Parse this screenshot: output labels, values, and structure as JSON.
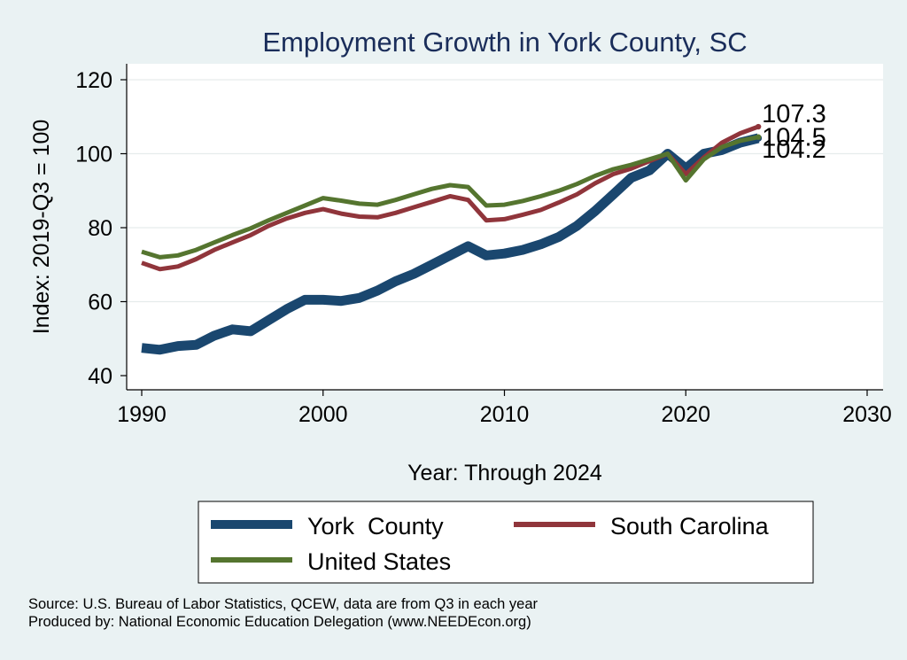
{
  "chart_data": {
    "type": "line",
    "title": "Employment Growth in York County, SC",
    "xlabel": "Year: Through 2024",
    "ylabel": "Index: 2019-Q3 = 100",
    "xlim": [
      1990,
      2030
    ],
    "ylim": [
      40,
      120
    ],
    "xticks": [
      1990,
      2000,
      2010,
      2020,
      2030
    ],
    "yticks": [
      40,
      60,
      80,
      100,
      120
    ],
    "grid": true,
    "legend_position": "bottom",
    "x": [
      1990,
      1991,
      1992,
      1993,
      1994,
      1995,
      1996,
      1997,
      1998,
      1999,
      2000,
      2001,
      2002,
      2003,
      2004,
      2005,
      2006,
      2007,
      2008,
      2009,
      2010,
      2011,
      2012,
      2013,
      2014,
      2015,
      2016,
      2017,
      2018,
      2019,
      2020,
      2021,
      2022,
      2023,
      2024
    ],
    "series": [
      {
        "name": "York  County",
        "color": "#1a476f",
        "values": [
          47.5,
          47.0,
          48.0,
          48.3,
          50.8,
          52.5,
          52.0,
          55.0,
          58.0,
          60.5,
          60.5,
          60.2,
          61.0,
          63.0,
          65.5,
          67.5,
          70.0,
          72.5,
          75.0,
          72.5,
          73.0,
          74.0,
          75.5,
          77.5,
          80.5,
          84.5,
          89.0,
          93.5,
          95.5,
          100.0,
          96.0,
          100.0,
          101.0,
          103.0,
          104.2
        ],
        "end_label": "104.2"
      },
      {
        "name": "South Carolina",
        "color": "#90353b",
        "values": [
          70.5,
          68.8,
          69.5,
          71.5,
          74.0,
          76.0,
          78.0,
          80.5,
          82.5,
          84.0,
          85.0,
          83.8,
          83.0,
          82.8,
          84.0,
          85.5,
          87.0,
          88.5,
          87.5,
          82.0,
          82.3,
          83.5,
          84.8,
          86.8,
          89.0,
          92.0,
          94.5,
          96.0,
          98.0,
          100.0,
          94.5,
          99.0,
          103.0,
          105.5,
          107.3
        ],
        "end_label": "107.3"
      },
      {
        "name": "United States",
        "color": "#55752f",
        "values": [
          73.5,
          72.0,
          72.5,
          74.0,
          76.0,
          78.0,
          79.8,
          82.0,
          84.0,
          86.0,
          88.0,
          87.3,
          86.5,
          86.2,
          87.5,
          89.0,
          90.5,
          91.5,
          91.0,
          86.0,
          86.2,
          87.2,
          88.5,
          90.0,
          91.8,
          94.0,
          95.8,
          97.0,
          98.5,
          100.0,
          92.8,
          98.5,
          101.8,
          103.5,
          104.5
        ],
        "end_label": "104.5"
      }
    ]
  },
  "notes": {
    "source": "Source: U.S. Bureau of Labor Statistics, QCEW, data are from Q3 in each year",
    "produced": "Produced by: National Economic Education Delegation (www.NEEDEcon.org)"
  }
}
